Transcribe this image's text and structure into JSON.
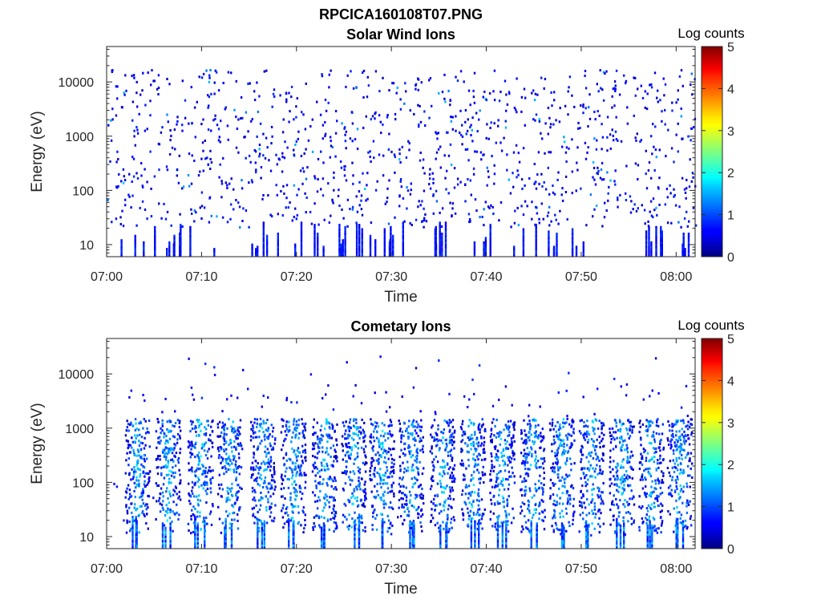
{
  "figure": {
    "filename": "RPCICA160108T07.PNG"
  },
  "chart_data": [
    {
      "type": "heatmap",
      "title": "Solar Wind Ions",
      "xlabel": "Time",
      "ylabel": "Energy (eV)",
      "x_ticks": [
        "07:00",
        "07:10",
        "07:20",
        "07:30",
        "07:40",
        "07:50",
        "08:00"
      ],
      "x_range_minutes": [
        0,
        62
      ],
      "y_ticks": [
        "10",
        "100",
        "1000",
        "10000"
      ],
      "y_scale": "log",
      "y_range": [
        6,
        45000
      ],
      "colorbar": {
        "label": "Log counts",
        "ticks": [
          "0",
          "1",
          "2",
          "3",
          "4",
          "5"
        ],
        "range": [
          0,
          5
        ],
        "colormap": "jet"
      },
      "description_stats": {
        "typical_log_counts": [
          0,
          1
        ],
        "max_log_counts": 1.6
      }
    },
    {
      "type": "heatmap",
      "title": "Cometary Ions",
      "xlabel": "Time",
      "ylabel": "Energy (eV)",
      "x_ticks": [
        "07:00",
        "07:10",
        "07:20",
        "07:30",
        "07:40",
        "07:50",
        "08:00"
      ],
      "x_range_minutes": [
        0,
        62
      ],
      "y_ticks": [
        "10",
        "100",
        "1000",
        "10000"
      ],
      "y_scale": "log",
      "y_range": [
        6,
        45000
      ],
      "colorbar": {
        "label": "Log counts",
        "ticks": [
          "0",
          "1",
          "2",
          "3",
          "4",
          "5"
        ],
        "range": [
          0,
          5
        ],
        "colormap": "jet"
      },
      "bursts_minutes": [
        3.2,
        6.4,
        9.8,
        12.9,
        16.4,
        19.6,
        22.9,
        26.0,
        28.9,
        32.0,
        35.3,
        38.5,
        41.6,
        44.8,
        47.9,
        51.0,
        54.2,
        57.3,
        60.3
      ],
      "description_stats": {
        "burst_energy_range_ev": [
          10,
          1500
        ],
        "max_log_counts": 2.1
      }
    }
  ]
}
